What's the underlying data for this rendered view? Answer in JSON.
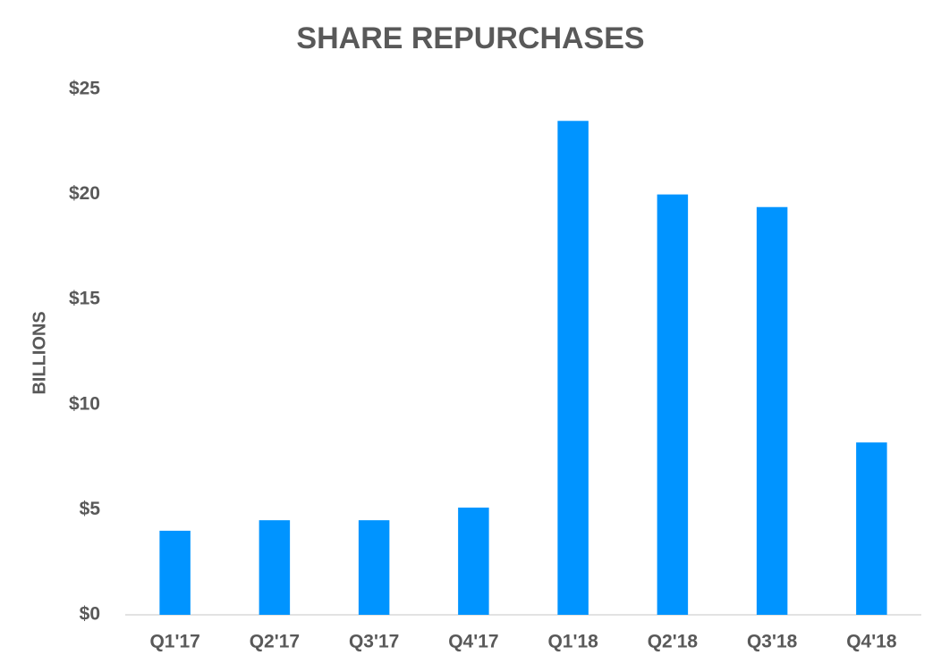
{
  "chart_data": {
    "type": "bar",
    "title": "SHARE REPURCHASES",
    "y_label": "BILLIONS",
    "categories": [
      "Q1'17",
      "Q2'17",
      "Q3'17",
      "Q4'17",
      "Q1'18",
      "Q2'18",
      "Q3'18",
      "Q4'18"
    ],
    "values": [
      4.0,
      4.5,
      4.5,
      5.1,
      23.5,
      20.0,
      19.4,
      8.2
    ],
    "color": "#0094ff",
    "ylim": [
      0,
      25
    ],
    "yticks": [
      {
        "value": 0,
        "label": "$0"
      },
      {
        "value": 5,
        "label": "$5"
      },
      {
        "value": 10,
        "label": "$10"
      },
      {
        "value": 15,
        "label": "$15"
      },
      {
        "value": 20,
        "label": "$20"
      },
      {
        "value": 25,
        "label": "$25"
      }
    ],
    "grid": false
  }
}
